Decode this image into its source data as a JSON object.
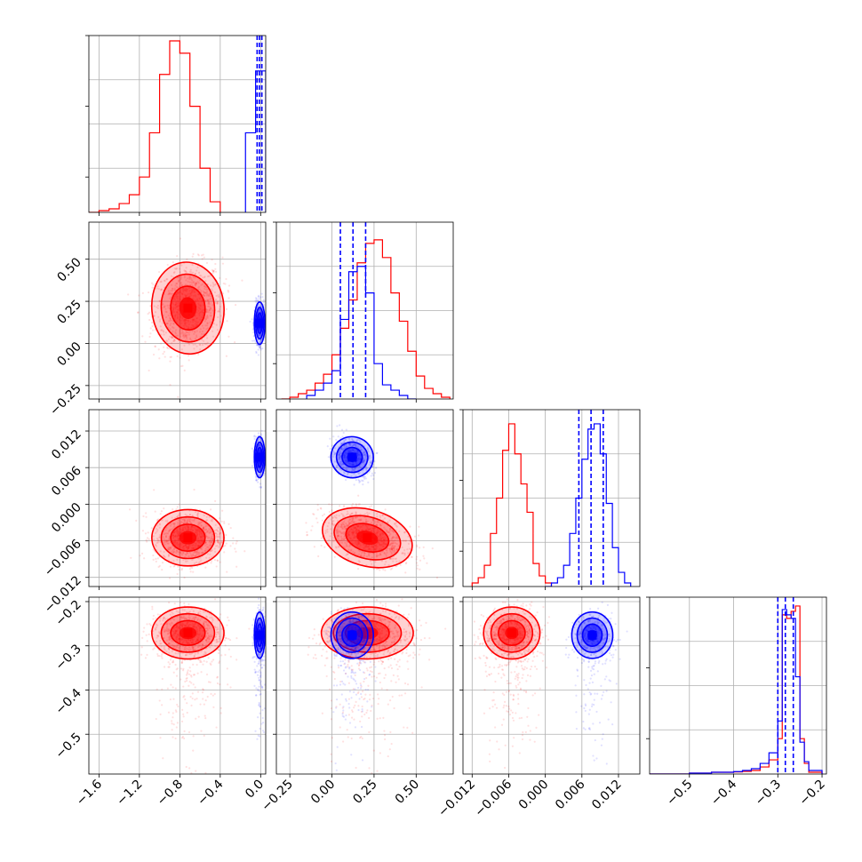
{
  "chart_data": {
    "type": "corner",
    "parameters": 4,
    "series": [
      {
        "color": "#ff0000"
      },
      {
        "color": "#0000ff"
      }
    ],
    "axes": [
      {
        "range": [
          -1.7,
          0.05
        ],
        "ticks": [
          -1.6,
          -1.2,
          -0.8,
          -0.4,
          0.0
        ],
        "tick_labels": [
          "−1.6",
          "−1.2",
          "−0.8",
          "−0.4",
          "0.0"
        ]
      },
      {
        "range": [
          -0.33,
          0.72
        ],
        "ticks": [
          -0.25,
          0.0,
          0.25,
          0.5
        ],
        "tick_labels": [
          "−0.25",
          "0.00",
          "0.25",
          "0.50"
        ]
      },
      {
        "range": [
          -0.0135,
          0.0155
        ],
        "ticks": [
          -0.012,
          -0.006,
          0.0,
          0.006,
          0.012
        ],
        "tick_labels": [
          "−0.012",
          "−0.006",
          "0.000",
          "0.006",
          "0.012"
        ]
      },
      {
        "range": [
          -0.59,
          -0.19
        ],
        "ticks": [
          -0.5,
          -0.4,
          -0.3,
          -0.2
        ],
        "tick_labels": [
          "−0.5",
          "−0.4",
          "−0.3",
          "−0.2"
        ]
      }
    ],
    "marginals": [
      {
        "series": [
          {
            "edges": [
              -1.7,
              -1.6,
              -1.5,
              -1.4,
              -1.3,
              -1.2,
              -1.1,
              -1.0,
              -0.9,
              -0.8,
              -0.7,
              -0.6,
              -0.5,
              -0.4
            ],
            "values": [
              0.0,
              0.01,
              0.02,
              0.05,
              0.1,
              0.2,
              0.45,
              0.78,
              0.97,
              0.9,
              0.6,
              0.25,
              0.06
            ]
          },
          {
            "edges": [
              -0.15,
              -0.05,
              0.05
            ],
            "values": [
              0.45,
              0.8
            ]
          }
        ],
        "quantiles": [
          -0.035,
          -0.012,
          0.012
        ]
      },
      {
        "series": [
          {
            "edges": [
              -0.3,
              -0.25,
              -0.2,
              -0.15,
              -0.1,
              -0.05,
              0.0,
              0.05,
              0.1,
              0.15,
              0.2,
              0.25,
              0.3,
              0.35,
              0.4,
              0.45,
              0.5,
              0.55,
              0.6,
              0.65,
              0.7
            ],
            "values": [
              0.0,
              0.01,
              0.03,
              0.05,
              0.09,
              0.14,
              0.25,
              0.4,
              0.56,
              0.77,
              0.88,
              0.9,
              0.8,
              0.6,
              0.44,
              0.27,
              0.13,
              0.06,
              0.03,
              0.01
            ]
          },
          {
            "edges": [
              -0.15,
              -0.1,
              -0.05,
              0.0,
              0.05,
              0.1,
              0.15,
              0.2,
              0.25,
              0.3,
              0.35,
              0.4,
              0.45,
              0.5
            ],
            "values": [
              0.02,
              0.05,
              0.09,
              0.16,
              0.45,
              0.72,
              0.75,
              0.6,
              0.2,
              0.08,
              0.05,
              0.02,
              0.0
            ]
          }
        ],
        "quantiles": [
          0.05,
          0.125,
          0.2
        ]
      },
      {
        "series": [
          {
            "edges": [
              -0.012,
              -0.011,
              -0.01,
              -0.009,
              -0.008,
              -0.007,
              -0.006,
              -0.005,
              -0.004,
              -0.003,
              -0.002,
              -0.001,
              0.0,
              0.001
            ],
            "values": [
              0.02,
              0.05,
              0.12,
              0.3,
              0.5,
              0.77,
              0.92,
              0.75,
              0.58,
              0.42,
              0.13,
              0.06,
              0.02
            ]
          },
          {
            "edges": [
              0.0,
              0.001,
              0.002,
              0.003,
              0.004,
              0.005,
              0.006,
              0.007,
              0.008,
              0.009,
              0.01,
              0.011,
              0.012,
              0.013,
              0.014
            ],
            "values": [
              0.0,
              0.02,
              0.05,
              0.12,
              0.3,
              0.5,
              0.72,
              0.89,
              0.92,
              0.75,
              0.47,
              0.22,
              0.08,
              0.02
            ]
          }
        ],
        "quantiles": [
          0.0055,
          0.0075,
          0.0095
        ]
      },
      {
        "series": [
          {
            "edges": [
              -0.59,
              -0.5,
              -0.45,
              -0.4,
              -0.38,
              -0.36,
              -0.34,
              -0.32,
              -0.3,
              -0.29,
              -0.28,
              -0.27,
              -0.26,
              -0.25,
              -0.24,
              -0.23,
              -0.2
            ],
            "values": [
              0.0,
              0.005,
              0.01,
              0.012,
              0.015,
              0.02,
              0.04,
              0.08,
              0.2,
              0.9,
              0.88,
              0.92,
              0.95,
              0.2,
              0.06,
              0.01
            ]
          },
          {
            "edges": [
              -0.59,
              -0.5,
              -0.45,
              -0.4,
              -0.38,
              -0.36,
              -0.34,
              -0.32,
              -0.3,
              -0.29,
              -0.28,
              -0.27,
              -0.26,
              -0.25,
              -0.24,
              -0.23,
              -0.2
            ],
            "values": [
              0.0,
              0.005,
              0.01,
              0.014,
              0.02,
              0.03,
              0.06,
              0.12,
              0.3,
              0.93,
              0.9,
              0.88,
              0.55,
              0.18,
              0.07,
              0.02
            ]
          }
        ],
        "quantiles": [
          -0.3,
          -0.283,
          -0.265
        ]
      }
    ],
    "posteriors": [
      {
        "series": 0,
        "mean": [
          -0.72,
          0.21,
          -0.0055,
          -0.271
        ],
        "sd": [
          0.17,
          0.13,
          0.0022,
          0.028
        ]
      },
      {
        "series": 1,
        "mean": [
          -0.01,
          0.12,
          0.0077,
          -0.276
        ],
        "sd": [
          0.025,
          0.06,
          0.0016,
          0.025
        ]
      }
    ]
  }
}
